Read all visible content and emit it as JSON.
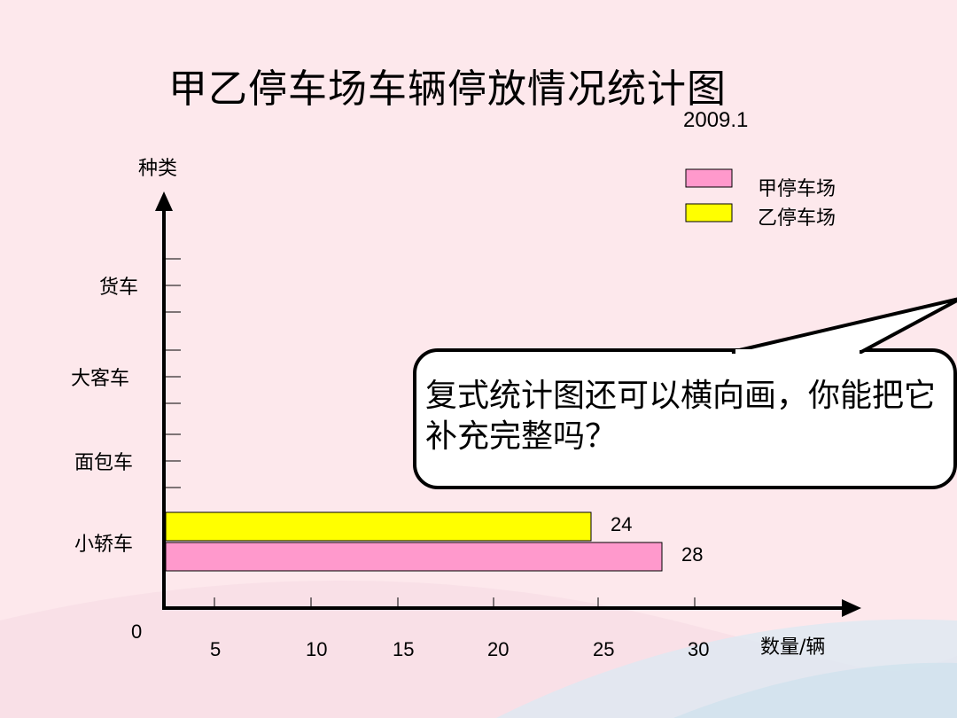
{
  "slide": {
    "title": "甲乙停车场车辆停放情况统计图",
    "date": "2009.1",
    "bubble_text": "复式统计图还可以横向画，你能把它补充完整吗？"
  },
  "colors": {
    "background": "#fde8ec",
    "series_a": "#ff99cc",
    "series_b": "#ffff00",
    "axis": "#000000",
    "bubble_fill": "#ffffff"
  },
  "chart_data": {
    "type": "bar",
    "orientation": "horizontal",
    "title": "甲乙停车场车辆停放情况统计图",
    "subtitle": "2009.1",
    "ylabel": "种类",
    "xlabel": "数量/辆",
    "origin_label": "0",
    "categories": [
      "小轿车",
      "面包车",
      "大客车",
      "货车"
    ],
    "x_ticks": [
      5,
      10,
      15,
      20,
      25,
      30
    ],
    "xlim": [
      0,
      33
    ],
    "series": [
      {
        "name": "甲停车场",
        "color": "#ff99cc",
        "values": [
          28,
          null,
          null,
          null
        ]
      },
      {
        "name": "乙停车场",
        "color": "#ffff00",
        "values": [
          24,
          null,
          null,
          null
        ]
      }
    ],
    "data_labels": [
      "28",
      "24"
    ],
    "legend_position": "top-right",
    "grid": false
  }
}
